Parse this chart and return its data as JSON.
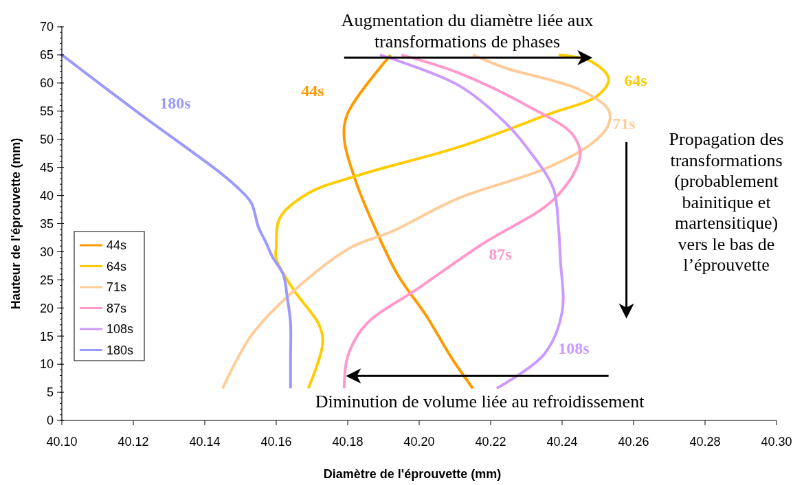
{
  "chart_data": {
    "type": "line",
    "xlabel": "Diamètre de l'éprouvette (mm)",
    "ylabel": "Hauteur de l'éprouvette (mm)",
    "xlim": [
      40.1,
      40.3
    ],
    "xticks": [
      {
        "value": 40.1,
        "label": "40.10"
      },
      {
        "value": 40.12,
        "label": "40.12"
      },
      {
        "value": 40.14,
        "label": "40.14"
      },
      {
        "value": 40.16,
        "label": "40.16"
      },
      {
        "value": 40.18,
        "label": "40.18"
      },
      {
        "value": 40.2,
        "label": "40.20"
      },
      {
        "value": 40.22,
        "label": "40.22"
      },
      {
        "value": 40.24,
        "label": "40.24"
      },
      {
        "value": 40.26,
        "label": "40.26"
      },
      {
        "value": 40.28,
        "label": "40.28"
      },
      {
        "value": 40.3,
        "label": "40.30"
      }
    ],
    "ylim": [
      0,
      70
    ],
    "yticks": [
      0,
      5,
      10,
      15,
      20,
      25,
      30,
      35,
      40,
      45,
      50,
      55,
      60,
      65,
      70
    ],
    "grid": false,
    "legend": "left",
    "marker": "none",
    "line_style": "solid",
    "series": [
      {
        "name": "44s",
        "color": "#ff9900",
        "x": [
          40.192,
          40.18,
          40.179,
          40.182,
          40.1875,
          40.194,
          40.202,
          40.209,
          40.215
        ],
        "values": [
          65,
          54.6,
          50.3,
          43,
          34.4,
          25.9,
          18.6,
          11.2,
          5.7
        ]
      },
      {
        "name": "64s",
        "color": "#ffcc00",
        "x": [
          40.239,
          40.248,
          40.253,
          40.25,
          40.236,
          40.211,
          40.183,
          40.169,
          40.161,
          40.16,
          40.16,
          40.165,
          40.172,
          40.173,
          40.169
        ],
        "values": [
          65,
          63.9,
          60.8,
          57.8,
          54.4,
          48.6,
          43.6,
          40.4,
          36,
          30.8,
          28.7,
          23.1,
          17,
          13.7,
          5.7
        ]
      },
      {
        "name": "71s",
        "color": "#ffcc99",
        "x": [
          40.215,
          40.224,
          40.245,
          40.253,
          40.253,
          40.248,
          40.235,
          40.211,
          40.192,
          40.181,
          40.165,
          40.153,
          40.145
        ],
        "values": [
          65,
          62.7,
          58.8,
          55.2,
          52.6,
          49.1,
          44.7,
          39.5,
          33.5,
          30.8,
          23.1,
          15.1,
          5.7
        ]
      },
      {
        "name": "87s",
        "color": "#ff99cc",
        "x": [
          40.195,
          40.211,
          40.231,
          40.243,
          40.245,
          40.238,
          40.2175,
          40.2,
          40.185,
          40.18,
          40.179
        ],
        "values": [
          65,
          61.8,
          55.7,
          50.8,
          46.9,
          39.5,
          31.3,
          23.6,
          17,
          11.4,
          5.7
        ]
      },
      {
        "name": "108s",
        "color": "#cc99ff",
        "x": [
          40.189,
          40.211,
          40.224,
          40.231,
          40.2375,
          40.239,
          40.2395,
          40.24,
          40.235,
          40.2217
        ],
        "values": [
          65,
          59.6,
          53,
          47.8,
          41.3,
          34.3,
          28.7,
          19.3,
          11.8,
          5.7
        ]
      },
      {
        "name": "180s",
        "color": "#9999ff",
        "x": [
          40.1,
          40.121,
          40.144,
          40.149,
          40.153,
          40.155,
          40.157,
          40.159,
          40.162,
          40.163,
          40.164,
          40.164,
          40.164
        ],
        "values": [
          65,
          54.9,
          44.2,
          41.5,
          38.7,
          34.4,
          31.8,
          29,
          25.9,
          22.2,
          17.3,
          11.2,
          5.7
        ]
      }
    ],
    "annotations": [
      "Augmentation du diamètre liée aux\ntransformations de phases",
      "Diminution de volume liée au refroidissement",
      "Propagation des\ntransformations\n(probablement\nbainitique et\nmartensitique)\nvers le bas de\nl’éprouvette"
    ]
  }
}
